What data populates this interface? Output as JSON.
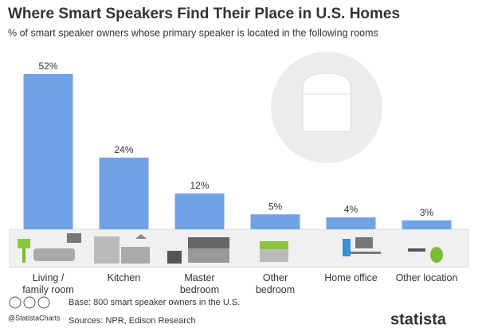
{
  "chart_data": {
    "type": "bar",
    "title": "Where Smart Speakers Find Their Place in U.S. Homes",
    "subtitle": "% of smart speaker owners whose primary speaker is located in the following rooms",
    "categories": [
      "Living / family room",
      "Kitchen",
      "Master bedroom",
      "Other bedroom",
      "Home office",
      "Other location"
    ],
    "values": [
      52,
      24,
      12,
      5,
      4,
      3
    ],
    "value_labels": [
      "52%",
      "24%",
      "12%",
      "5%",
      "4%",
      "3%"
    ],
    "color": "#6fa3e6",
    "handle": "@StatistaCharts",
    "base": "Base: 800 smart speaker owners in the U.S.",
    "sources": "Sources: NPR, Edison Research",
    "brand": "statista"
  }
}
